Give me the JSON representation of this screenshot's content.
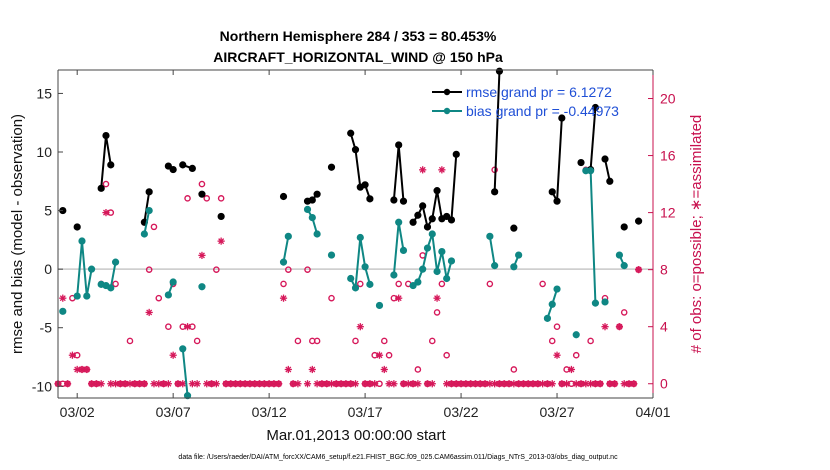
{
  "chart_data": {
    "type": "line",
    "title_line1": "Northern Hemisphere 284 / 353 = 80.453%",
    "title_line2": "AIRCRAFT_HORIZONTAL_WIND @ 150 hPa",
    "xlabel": "Mar.01,2013 00:00:00 start",
    "ylabel_left": "rmse and bias (model - observation)",
    "ylabel_right": "# of obs: o=possible; ∗=assimilated",
    "footer": "data file: /Users/raeder/DAI/ATM_forcXX/CAM6_setup/f.e21.FHIST_BGC.f09_025.CAM6assim.011/Diags_NTrS_2013-03/obs_diag_output.nc",
    "xlim": [
      0,
      31
    ],
    "ylim_left": [
      -11,
      17
    ],
    "ylim_right": [
      -1,
      22
    ],
    "x_ticks": [
      1,
      6,
      11,
      16,
      21,
      26,
      31
    ],
    "x_tick_labels": [
      "03/02",
      "03/07",
      "03/12",
      "03/17",
      "03/22",
      "03/27",
      "04/01"
    ],
    "y_ticks_left": [
      -10,
      -5,
      0,
      5,
      10,
      15
    ],
    "y_tick_labels_left": [
      "-10",
      "-5",
      "0",
      "5",
      "10",
      "15"
    ],
    "y_ticks_right": [
      0,
      4,
      8,
      12,
      16,
      20
    ],
    "y_tick_labels_right": [
      "0",
      "4",
      "8",
      "12",
      "16",
      "20"
    ],
    "colors": {
      "rmse": "#000000",
      "bias": "#0f8784",
      "obs": "#d6185a",
      "zero_line": "#c8c8c8",
      "legend_text": "#1f4fd6"
    },
    "legend": {
      "rmse_label": "rmse grand pr = 6.1272",
      "bias_label": "bias grand pr = -0.44973",
      "placement": "top-right"
    },
    "series": [
      {
        "name": "rmse",
        "segments": [
          [
            [
              0.25,
              5.0
            ]
          ],
          [
            [
              1.0,
              3.6
            ]
          ],
          [
            [
              2.25,
              6.9
            ],
            [
              2.5,
              11.4
            ],
            [
              2.75,
              8.9
            ]
          ],
          [
            [
              4.5,
              4.0
            ],
            [
              4.75,
              6.6
            ]
          ],
          [
            [
              5.75,
              8.8
            ],
            [
              6.0,
              8.5
            ]
          ],
          [
            [
              6.5,
              8.9
            ],
            [
              7.0,
              8.6
            ]
          ],
          [
            [
              7.5,
              6.4
            ]
          ],
          [
            [
              8.5,
              4.5
            ]
          ],
          [
            [
              11.75,
              6.2
            ]
          ],
          [
            [
              13.0,
              5.8
            ],
            [
              13.25,
              5.9
            ],
            [
              13.5,
              6.4
            ]
          ],
          [
            [
              14.25,
              8.7
            ]
          ],
          [
            [
              15.25,
              11.6
            ],
            [
              15.5,
              10.2
            ],
            [
              15.75,
              7.0
            ],
            [
              16.0,
              7.2
            ],
            [
              16.25,
              6.0
            ]
          ],
          [
            [
              17.5,
              5.9
            ],
            [
              17.75,
              10.6
            ],
            [
              18.0,
              5.8
            ]
          ],
          [
            [
              18.5,
              4.0
            ],
            [
              18.75,
              4.6
            ],
            [
              19.0,
              5.4
            ],
            [
              19.25,
              3.6
            ],
            [
              19.5,
              4.3
            ],
            [
              19.75,
              6.7
            ],
            [
              20.0,
              4.3
            ],
            [
              20.25,
              4.5
            ],
            [
              20.5,
              4.2
            ],
            [
              20.75,
              9.8
            ]
          ],
          [
            [
              22.75,
              6.6
            ],
            [
              23.0,
              16.9
            ]
          ],
          [
            [
              23.75,
              3.5
            ]
          ],
          [
            [
              25.75,
              6.6
            ],
            [
              26.0,
              5.8
            ],
            [
              26.25,
              12.9
            ]
          ],
          [
            [
              27.25,
              9.1
            ]
          ],
          [
            [
              27.75,
              8.5
            ],
            [
              28.0,
              13.8
            ]
          ],
          [
            [
              28.5,
              9.4
            ],
            [
              28.75,
              7.5
            ]
          ],
          [
            [
              29.5,
              3.6
            ]
          ],
          [
            [
              30.25,
              4.1
            ]
          ]
        ]
      },
      {
        "name": "bias",
        "segments": [
          [
            [
              0.25,
              -3.6
            ]
          ],
          [
            [
              1.0,
              -2.3
            ],
            [
              1.25,
              2.4
            ],
            [
              1.5,
              -2.3
            ],
            [
              1.75,
              0.0
            ]
          ],
          [
            [
              2.25,
              -1.3
            ],
            [
              2.5,
              -1.4
            ],
            [
              2.75,
              -1.6
            ],
            [
              3.0,
              0.6
            ]
          ],
          [
            [
              4.5,
              3.0
            ],
            [
              4.75,
              5.0
            ]
          ],
          [
            [
              5.75,
              -2.2
            ],
            [
              6.0,
              -1.1
            ]
          ],
          [
            [
              6.5,
              -6.8
            ],
            [
              6.75,
              -10.8
            ]
          ],
          [
            [
              7.5,
              -1.5
            ]
          ],
          [
            [
              11.75,
              0.6
            ],
            [
              12.0,
              2.8
            ]
          ],
          [
            [
              13.0,
              5.1
            ],
            [
              13.25,
              4.4
            ],
            [
              13.5,
              3.0
            ]
          ],
          [
            [
              14.25,
              1.2
            ]
          ],
          [
            [
              15.25,
              -0.8
            ],
            [
              15.5,
              -1.6
            ],
            [
              15.75,
              2.7
            ],
            [
              16.0,
              0.2
            ],
            [
              16.25,
              -1.3
            ]
          ],
          [
            [
              16.75,
              -3.1
            ]
          ],
          [
            [
              17.5,
              -0.5
            ],
            [
              17.75,
              4.0
            ],
            [
              18.0,
              1.6
            ]
          ],
          [
            [
              18.5,
              -1.4
            ],
            [
              18.75,
              -1.1
            ],
            [
              19.0,
              0.0
            ],
            [
              19.25,
              1.8
            ],
            [
              19.5,
              3.0
            ],
            [
              19.75,
              -0.2
            ],
            [
              20.0,
              1.5
            ],
            [
              20.25,
              -0.8
            ],
            [
              20.5,
              0.7
            ]
          ],
          [
            [
              22.5,
              2.8
            ],
            [
              22.75,
              0.3
            ]
          ],
          [
            [
              23.75,
              0.2
            ],
            [
              24.0,
              1.2
            ]
          ],
          [
            [
              25.5,
              -4.2
            ],
            [
              25.75,
              -3.0
            ],
            [
              26.0,
              -1.7
            ]
          ],
          [
            [
              27.0,
              -5.6
            ]
          ],
          [
            [
              27.5,
              8.4
            ],
            [
              27.75,
              8.4
            ],
            [
              28.0,
              -2.9
            ]
          ],
          [
            [
              28.5,
              -2.8
            ]
          ],
          [
            [
              29.25,
              1.2
            ],
            [
              29.5,
              0.3
            ]
          ]
        ]
      }
    ],
    "obs_possible": [
      [
        0.0,
        0
      ],
      [
        0.25,
        0
      ],
      [
        0.5,
        0
      ],
      [
        0.75,
        6
      ],
      [
        1.0,
        2
      ],
      [
        1.25,
        1
      ],
      [
        1.5,
        1
      ],
      [
        1.75,
        0
      ],
      [
        2.0,
        0
      ],
      [
        2.25,
        7
      ],
      [
        2.5,
        14
      ],
      [
        2.75,
        12
      ],
      [
        3.0,
        7
      ],
      [
        3.25,
        0
      ],
      [
        3.5,
        0
      ],
      [
        3.75,
        3
      ],
      [
        4.0,
        0
      ],
      [
        4.25,
        0
      ],
      [
        4.5,
        0
      ],
      [
        4.75,
        8
      ],
      [
        5.0,
        11
      ],
      [
        5.25,
        6
      ],
      [
        5.5,
        0
      ],
      [
        5.75,
        4
      ],
      [
        6.0,
        7
      ],
      [
        6.25,
        0
      ],
      [
        6.5,
        4
      ],
      [
        6.75,
        13
      ],
      [
        7.0,
        4
      ],
      [
        7.25,
        3
      ],
      [
        7.5,
        14
      ],
      [
        7.75,
        13
      ],
      [
        8.0,
        0
      ],
      [
        8.25,
        8
      ],
      [
        8.5,
        13
      ],
      [
        8.75,
        0
      ],
      [
        9.0,
        0
      ],
      [
        9.25,
        0
      ],
      [
        9.5,
        0
      ],
      [
        9.75,
        0
      ],
      [
        10.0,
        0
      ],
      [
        10.25,
        0
      ],
      [
        10.5,
        0
      ],
      [
        10.75,
        0
      ],
      [
        11.0,
        0
      ],
      [
        11.25,
        0
      ],
      [
        11.5,
        0
      ],
      [
        11.75,
        7
      ],
      [
        12.0,
        8
      ],
      [
        12.25,
        0
      ],
      [
        12.5,
        3
      ],
      [
        13.0,
        8
      ],
      [
        13.25,
        3
      ],
      [
        13.5,
        3
      ],
      [
        13.75,
        0
      ],
      [
        14.0,
        0
      ],
      [
        14.25,
        6
      ],
      [
        14.5,
        0
      ],
      [
        14.75,
        0
      ],
      [
        15.0,
        0
      ],
      [
        15.25,
        0
      ],
      [
        15.5,
        3
      ],
      [
        15.75,
        7
      ],
      [
        16.0,
        0
      ],
      [
        16.25,
        0
      ],
      [
        16.5,
        2
      ],
      [
        16.75,
        0
      ],
      [
        17.0,
        3
      ],
      [
        17.25,
        2
      ],
      [
        17.5,
        6
      ],
      [
        17.75,
        7
      ],
      [
        18.0,
        0
      ],
      [
        18.25,
        7
      ],
      [
        18.5,
        0
      ],
      [
        18.75,
        1
      ],
      [
        19.0,
        9
      ],
      [
        19.25,
        0
      ],
      [
        19.5,
        3
      ],
      [
        19.75,
        5
      ],
      [
        20.0,
        7
      ],
      [
        20.25,
        2
      ],
      [
        20.5,
        0
      ],
      [
        20.75,
        0
      ],
      [
        21.0,
        0
      ],
      [
        21.25,
        0
      ],
      [
        21.5,
        0
      ],
      [
        21.75,
        0
      ],
      [
        22.0,
        0
      ],
      [
        22.25,
        0
      ],
      [
        22.5,
        7
      ],
      [
        22.75,
        15
      ],
      [
        23.0,
        0
      ],
      [
        23.25,
        0
      ],
      [
        23.5,
        0
      ],
      [
        23.75,
        1
      ],
      [
        24.0,
        0
      ],
      [
        24.25,
        0
      ],
      [
        24.5,
        0
      ],
      [
        24.75,
        0
      ],
      [
        25.0,
        0
      ],
      [
        25.25,
        7
      ],
      [
        25.5,
        0
      ],
      [
        25.75,
        3
      ],
      [
        26.0,
        4
      ],
      [
        26.25,
        0
      ],
      [
        26.5,
        1
      ],
      [
        26.75,
        0
      ],
      [
        27.0,
        2
      ],
      [
        27.25,
        0
      ],
      [
        27.5,
        15
      ],
      [
        27.75,
        3
      ],
      [
        28.0,
        0
      ],
      [
        28.25,
        0
      ],
      [
        28.5,
        6
      ],
      [
        28.75,
        0
      ],
      [
        29.0,
        0
      ],
      [
        29.25,
        4
      ],
      [
        29.5,
        5
      ],
      [
        29.75,
        0
      ],
      [
        30.0,
        0
      ],
      [
        30.25,
        8
      ]
    ],
    "obs_assimilated": [
      [
        0.0,
        0
      ],
      [
        0.25,
        6
      ],
      [
        0.5,
        0
      ],
      [
        0.75,
        2
      ],
      [
        1.0,
        1
      ],
      [
        1.25,
        1
      ],
      [
        1.5,
        1
      ],
      [
        1.75,
        0
      ],
      [
        2.0,
        0
      ],
      [
        2.25,
        0
      ],
      [
        2.5,
        12
      ],
      [
        2.75,
        0
      ],
      [
        3.0,
        0
      ],
      [
        3.25,
        0
      ],
      [
        3.5,
        0
      ],
      [
        3.75,
        0
      ],
      [
        4.0,
        0
      ],
      [
        4.25,
        0
      ],
      [
        4.5,
        0
      ],
      [
        4.75,
        5
      ],
      [
        5.0,
        0
      ],
      [
        5.25,
        0
      ],
      [
        5.5,
        0
      ],
      [
        5.75,
        0
      ],
      [
        6.0,
        2
      ],
      [
        6.25,
        0
      ],
      [
        6.5,
        0
      ],
      [
        6.75,
        4
      ],
      [
        7.0,
        0
      ],
      [
        7.25,
        0
      ],
      [
        7.5,
        9
      ],
      [
        7.75,
        0
      ],
      [
        8.0,
        0
      ],
      [
        8.25,
        0
      ],
      [
        8.5,
        10
      ],
      [
        8.75,
        0
      ],
      [
        9.0,
        0
      ],
      [
        9.25,
        0
      ],
      [
        9.5,
        0
      ],
      [
        9.75,
        0
      ],
      [
        10.0,
        0
      ],
      [
        10.25,
        0
      ],
      [
        10.5,
        0
      ],
      [
        10.75,
        0
      ],
      [
        11.0,
        0
      ],
      [
        11.25,
        0
      ],
      [
        11.5,
        0
      ],
      [
        11.75,
        6
      ],
      [
        12.0,
        1
      ],
      [
        12.25,
        0
      ],
      [
        12.5,
        0
      ],
      [
        13.0,
        0
      ],
      [
        13.25,
        1
      ],
      [
        13.5,
        0
      ],
      [
        13.75,
        0
      ],
      [
        14.0,
        0
      ],
      [
        14.25,
        0
      ],
      [
        14.5,
        0
      ],
      [
        14.75,
        0
      ],
      [
        15.0,
        0
      ],
      [
        15.25,
        0
      ],
      [
        15.5,
        0
      ],
      [
        15.75,
        4
      ],
      [
        16.0,
        0
      ],
      [
        16.25,
        0
      ],
      [
        16.5,
        0
      ],
      [
        16.75,
        2
      ],
      [
        17.0,
        1
      ],
      [
        17.25,
        0
      ],
      [
        17.5,
        0
      ],
      [
        17.75,
        6
      ],
      [
        18.0,
        0
      ],
      [
        18.25,
        0
      ],
      [
        18.5,
        0
      ],
      [
        18.75,
        0
      ],
      [
        19.0,
        15
      ],
      [
        19.25,
        0
      ],
      [
        19.5,
        0
      ],
      [
        19.75,
        6
      ],
      [
        20.0,
        15
      ],
      [
        20.25,
        0
      ],
      [
        20.5,
        0
      ],
      [
        20.75,
        0
      ],
      [
        21.0,
        0
      ],
      [
        21.25,
        0
      ],
      [
        21.5,
        0
      ],
      [
        21.75,
        0
      ],
      [
        22.0,
        0
      ],
      [
        22.25,
        0
      ],
      [
        22.5,
        0
      ],
      [
        22.75,
        0
      ],
      [
        23.0,
        0
      ],
      [
        23.25,
        0
      ],
      [
        23.5,
        0
      ],
      [
        23.75,
        0
      ],
      [
        24.0,
        0
      ],
      [
        24.25,
        0
      ],
      [
        24.5,
        0
      ],
      [
        24.75,
        0
      ],
      [
        25.0,
        0
      ],
      [
        25.25,
        0
      ],
      [
        25.5,
        0
      ],
      [
        25.75,
        0
      ],
      [
        26.0,
        2
      ],
      [
        26.25,
        0
      ],
      [
        26.5,
        0
      ],
      [
        26.75,
        1
      ],
      [
        27.0,
        0
      ],
      [
        27.25,
        0
      ],
      [
        27.5,
        0
      ],
      [
        27.75,
        0
      ],
      [
        28.0,
        0
      ],
      [
        28.25,
        0
      ],
      [
        28.5,
        4
      ],
      [
        28.75,
        0
      ],
      [
        29.0,
        0
      ],
      [
        29.25,
        4
      ],
      [
        29.5,
        0
      ],
      [
        29.75,
        0
      ],
      [
        30.0,
        0
      ],
      [
        30.25,
        8
      ]
    ]
  }
}
